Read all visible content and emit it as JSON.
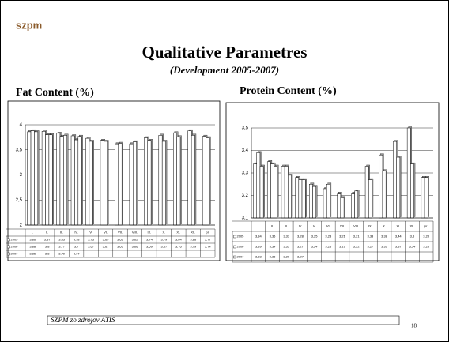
{
  "slide": {
    "logo": "szpm",
    "title": "Qualitative  Parametres",
    "subtitle": "(Development 2005-2007)",
    "footer": "SZPM zo zdrojov ATIS",
    "page": "18"
  },
  "chart_data": [
    {
      "type": "bar",
      "title": "Fat Content (%)",
      "categories": [
        "I.",
        "II.",
        "III.",
        "IV.",
        "V.",
        "VI.",
        "VII.",
        "VIII.",
        "IX.",
        "X.",
        "XI.",
        "XII.",
        "pr."
      ],
      "ylim": [
        2,
        4
      ],
      "yticks": [
        2,
        {
          "value": 2.5,
          "label": "2,5"
        },
        3,
        {
          "value": 3.5,
          "label": "3,5"
        },
        4
      ],
      "grid": true,
      "series": [
        {
          "name": "2005",
          "color": "#ffffff",
          "values": [
            3.86,
            3.87,
            3.83,
            3.78,
            3.73,
            3.69,
            3.62,
            3.62,
            3.74,
            3.79,
            3.84,
            3.88,
            3.77
          ],
          "value_labels": [
            "3,86",
            "3,87",
            "3,83",
            "3,78",
            "3,73",
            "3,69",
            "3,62",
            "3,62",
            "3,74",
            "3,79",
            "3,84",
            "3,88",
            "3,77"
          ]
        },
        {
          "name": "2006",
          "color": "#ffffff",
          "values": [
            3.88,
            3.8,
            3.77,
            3.7,
            3.67,
            3.67,
            3.63,
            3.66,
            3.69,
            3.67,
            3.76,
            3.79,
            3.74
          ],
          "value_labels": [
            "3,88",
            "3,8",
            "3,77",
            "3,7",
            "3,67",
            "3,67",
            "3,63",
            "3,66",
            "3,69",
            "3,67",
            "3,76",
            "3,79",
            "3,74"
          ]
        },
        {
          "name": "2007",
          "color": "#ffffff",
          "values": [
            3.86,
            3.8,
            3.79,
            3.77,
            null,
            null,
            null,
            null,
            null,
            null,
            null,
            null,
            null
          ],
          "value_labels": [
            "3,86",
            "3,8",
            "3,79",
            "3,77",
            null,
            null,
            null,
            null,
            null,
            null,
            null,
            null,
            null
          ]
        }
      ]
    },
    {
      "type": "bar",
      "title": "Protein Content (%)",
      "categories": [
        "I.",
        "II.",
        "III.",
        "IV.",
        "V.",
        "VI.",
        "VII.",
        "VIII.",
        "IX.",
        "X.",
        "XI.",
        "XII.",
        "pr."
      ],
      "ylim": [
        3.1,
        3.5
      ],
      "yticks": [
        {
          "value": 3.1,
          "label": "3,1"
        },
        {
          "value": 3.2,
          "label": "3,2"
        },
        {
          "value": 3.3,
          "label": "3,3"
        },
        {
          "value": 3.4,
          "label": "3,4"
        },
        {
          "value": 3.5,
          "label": "3,5"
        }
      ],
      "grid": true,
      "series": [
        {
          "name": "2005",
          "color": "#ffffff",
          "values": [
            3.34,
            3.35,
            3.33,
            3.28,
            3.25,
            3.23,
            3.21,
            3.21,
            3.33,
            3.38,
            3.44,
            3.5,
            3.28
          ],
          "value_labels": [
            "3,34",
            "3,35",
            "3,33",
            "3,28",
            "3,25",
            "3,23",
            "3,21",
            "3,21",
            "3,33",
            "3,38",
            "3,44",
            "3,5",
            "3,28"
          ]
        },
        {
          "name": "2006",
          "color": "#ffffff",
          "values": [
            3.39,
            3.34,
            3.33,
            3.27,
            3.24,
            3.25,
            3.19,
            3.22,
            3.27,
            3.31,
            3.37,
            3.34,
            3.28
          ],
          "value_labels": [
            "3,39",
            "3,34",
            "3,33",
            "3,27",
            "3,24",
            "3,25",
            "3,19",
            "3,22",
            "3,27",
            "3,31",
            "3,37",
            "3,34",
            "3,28"
          ]
        },
        {
          "name": "2007",
          "color": "#ffffff",
          "values": [
            3.33,
            3.33,
            3.29,
            3.27,
            null,
            null,
            null,
            null,
            null,
            null,
            null,
            null,
            null
          ],
          "value_labels": [
            "3,33",
            "3,33",
            "3,29",
            "3,27",
            null,
            null,
            null,
            null,
            null,
            null,
            null,
            null,
            null
          ]
        }
      ]
    }
  ]
}
